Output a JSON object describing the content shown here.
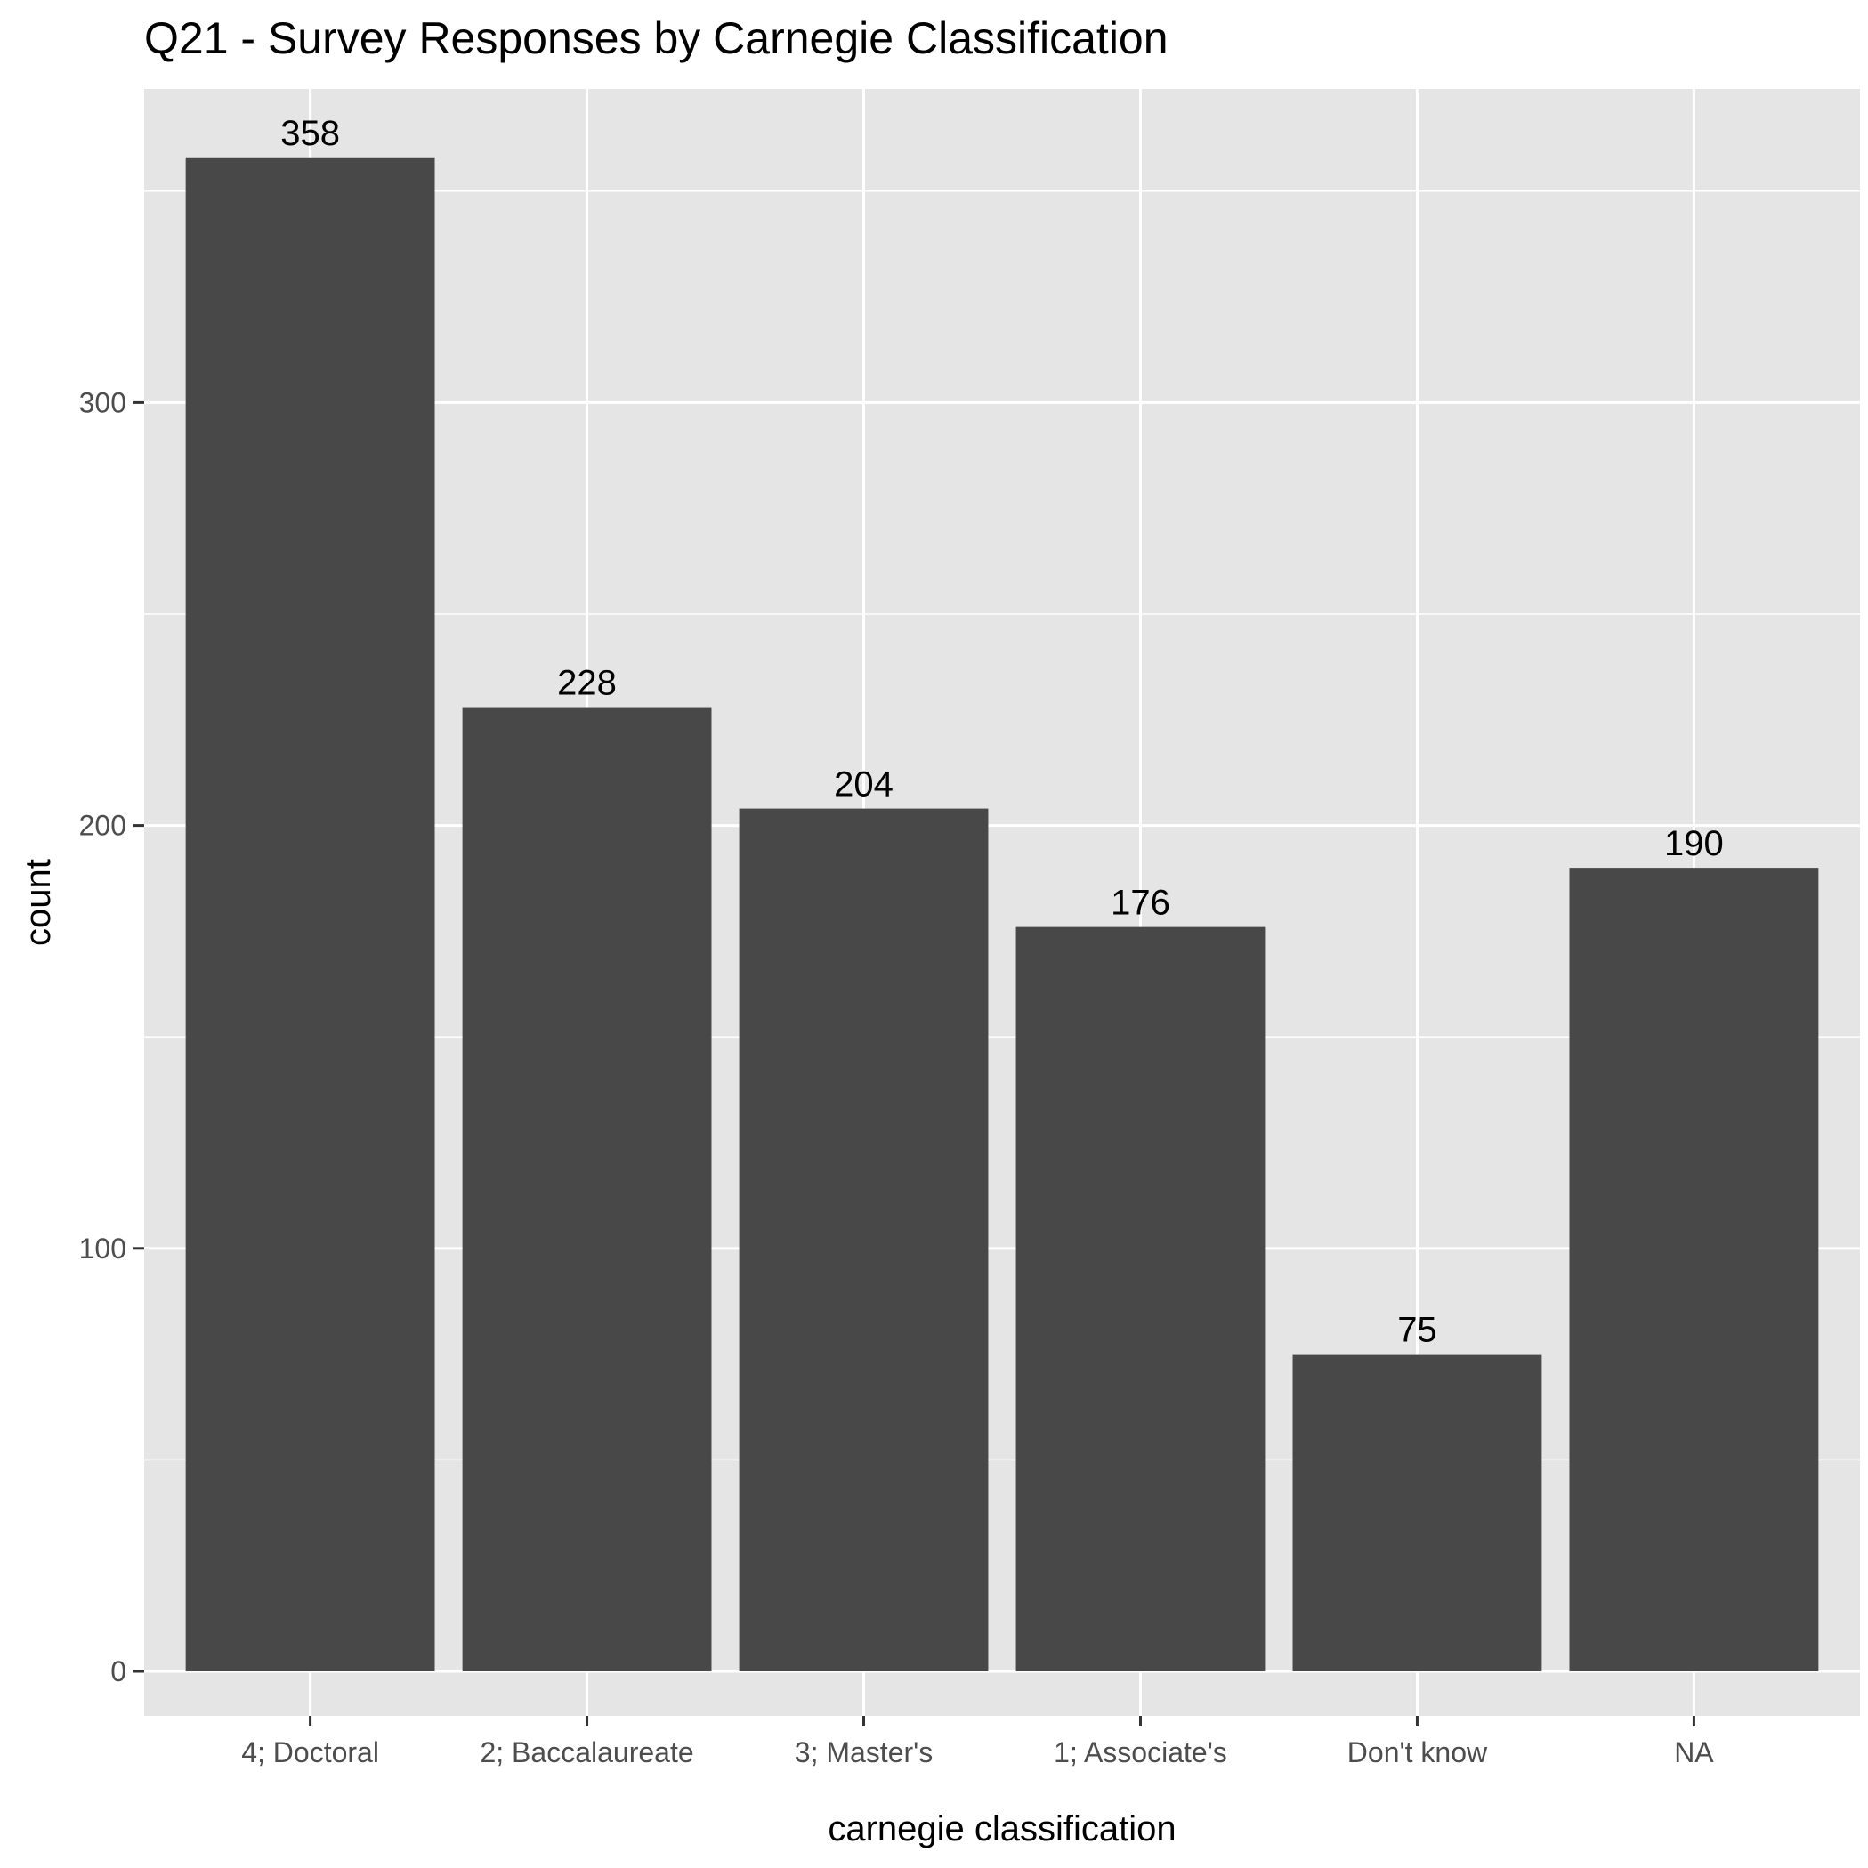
{
  "chart_data": {
    "type": "bar",
    "title": "Q21 - Survey Responses by Carnegie Classification",
    "xlabel": "carnegie classification",
    "ylabel": "count",
    "categories": [
      "4; Doctoral",
      "2; Baccalaureate",
      "3; Master's",
      "1; Associate's",
      "Don't know",
      "NA"
    ],
    "values": [
      358,
      228,
      204,
      176,
      75,
      190
    ],
    "data_labels": [
      "358",
      "228",
      "204",
      "176",
      "75",
      "190"
    ],
    "yticks": [
      0,
      100,
      200,
      300
    ],
    "ytick_labels": [
      "0",
      "100",
      "200",
      "300"
    ],
    "ylim": [
      -17.9,
      375.9
    ],
    "grid": true,
    "colors": {
      "bar": "#484848",
      "panel": "#e5e5e5",
      "grid": "#ffffff",
      "tick_text": "#4d4d4d",
      "text": "#000000"
    }
  }
}
